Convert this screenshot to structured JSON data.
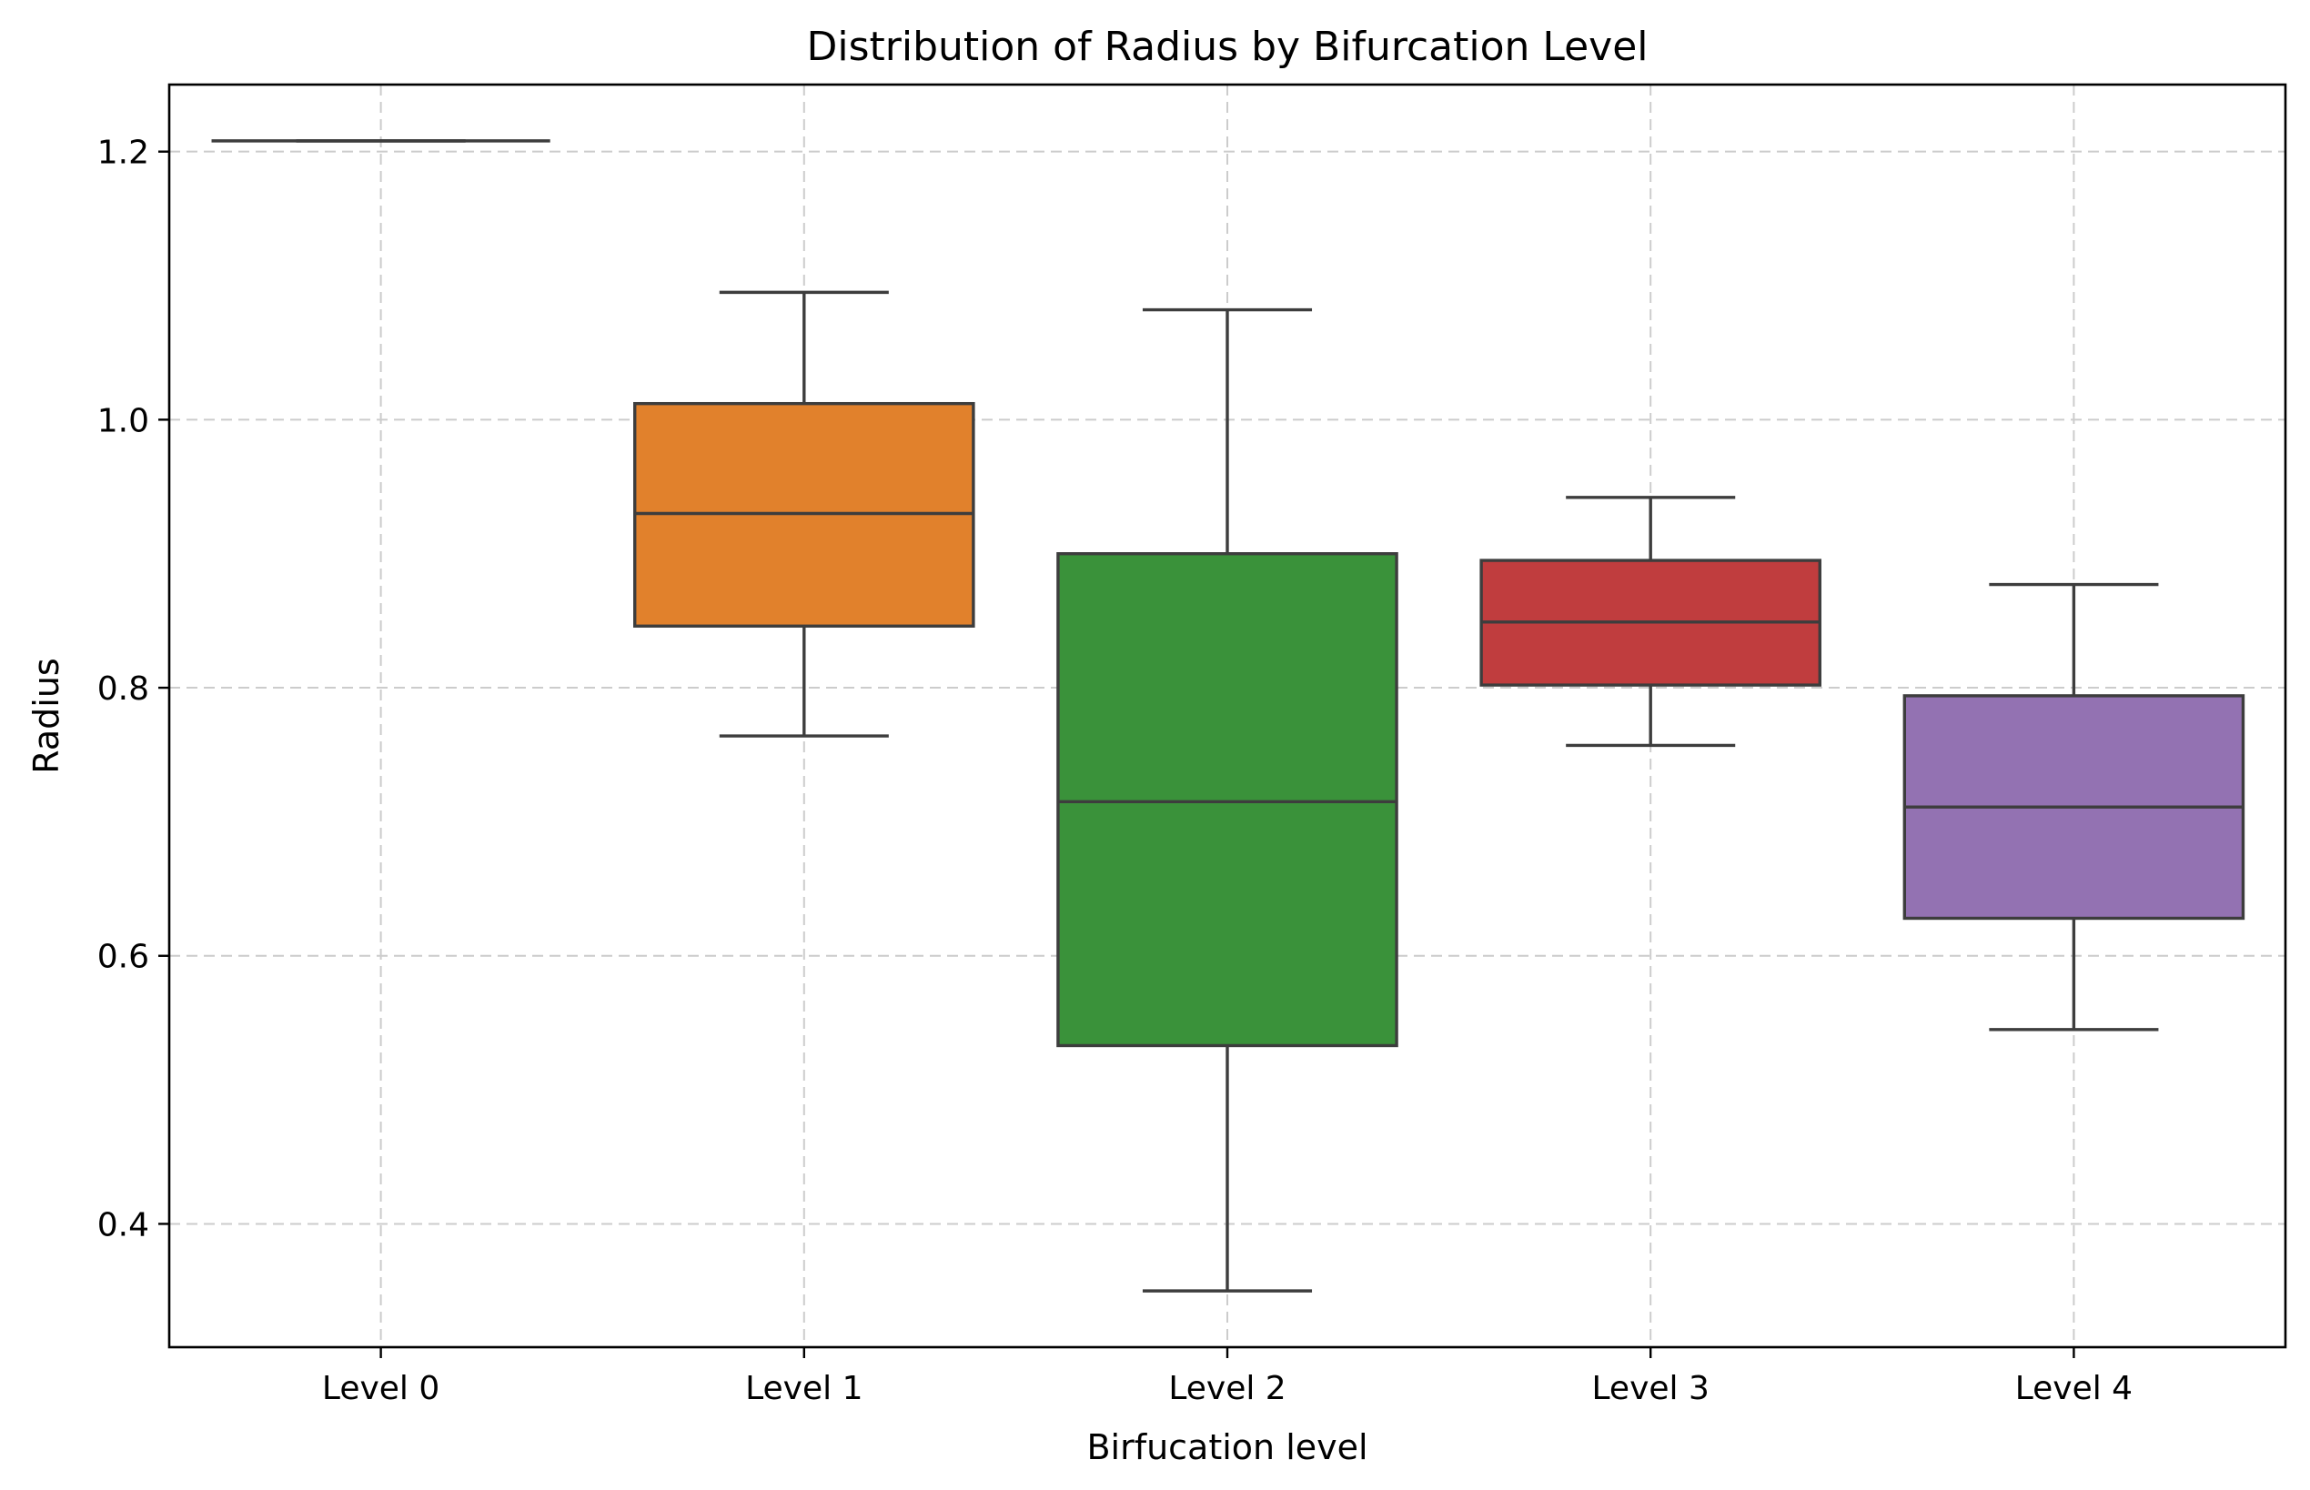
{
  "chart_data": {
    "type": "box",
    "title": "Distribution of Radius by Bifurcation Level",
    "xlabel": "Birfucation level",
    "ylabel": "Radius",
    "ylim": [
      0.308,
      1.25
    ],
    "yticks": [
      0.4,
      0.6,
      0.8,
      1.0,
      1.2
    ],
    "ytick_labels": [
      "0.4",
      "0.6",
      "0.8",
      "1.0",
      "1.2"
    ],
    "grid": true,
    "categories": [
      "Level 0",
      "Level 1",
      "Level 2",
      "Level 3",
      "Level 4"
    ],
    "boxes": [
      {
        "category": "Level 0",
        "min": 1.208,
        "q1": 1.208,
        "median": 1.208,
        "q3": 1.208,
        "max": 1.208,
        "color": "#1f77b4"
      },
      {
        "category": "Level 1",
        "min": 0.764,
        "q1": 0.846,
        "median": 0.93,
        "q3": 1.012,
        "max": 1.095,
        "color": "#e1812c"
      },
      {
        "category": "Level 2",
        "min": 0.35,
        "q1": 0.533,
        "median": 0.715,
        "q3": 0.9,
        "max": 1.082,
        "color": "#3a923a"
      },
      {
        "category": "Level 3",
        "min": 0.757,
        "q1": 0.802,
        "median": 0.849,
        "q3": 0.895,
        "max": 0.942,
        "color": "#c03d3e"
      },
      {
        "category": "Level 4",
        "min": 0.545,
        "q1": 0.628,
        "median": 0.711,
        "q3": 0.794,
        "max": 0.877,
        "color": "#9372b2"
      }
    ]
  }
}
